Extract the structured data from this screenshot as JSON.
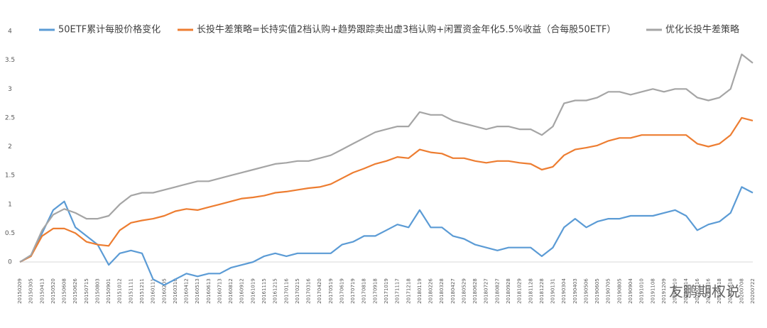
{
  "chart_data": {
    "type": "line",
    "categories": [
      "20150209",
      "20150305",
      "20150413",
      "20150520",
      "20150608",
      "20150626",
      "20150715",
      "20150803",
      "20150901",
      "20151012",
      "20151111",
      "20151211",
      "20160111",
      "20160205",
      "20160310",
      "20160412",
      "20160513",
      "20160613",
      "20160713",
      "20160812",
      "20160912",
      "20161019",
      "20161115",
      "20161215",
      "20170116",
      "20170215",
      "20170316",
      "20170420",
      "20170519",
      "20170619",
      "20170719",
      "20170818",
      "20170918",
      "20171019",
      "20171117",
      "20171218",
      "20180119",
      "20180226",
      "20180328",
      "20180427",
      "20180529",
      "20180628",
      "20180727",
      "20180827",
      "20180928",
      "20181029",
      "20181128",
      "20181228",
      "20190131",
      "20190304",
      "20190403",
      "20190506",
      "20190605",
      "20190705",
      "20190805",
      "20190904",
      "20191010",
      "20191108",
      "20191209",
      "20200110",
      "20200214",
      "20200316",
      "20200416",
      "20200518",
      "20200618",
      "20200708",
      "20200722"
    ],
    "series": [
      {
        "name": "50ETF累计每股价格变化",
        "color": "#5b9bd5",
        "values": [
          0,
          0.1,
          0.5,
          0.9,
          1.05,
          0.6,
          0.45,
          0.3,
          -0.05,
          0.15,
          0.2,
          0.15,
          -0.3,
          -0.4,
          -0.3,
          -0.2,
          -0.25,
          -0.2,
          -0.2,
          -0.1,
          -0.05,
          0.0,
          0.1,
          0.15,
          0.1,
          0.15,
          0.15,
          0.15,
          0.15,
          0.3,
          0.35,
          0.45,
          0.45,
          0.55,
          0.65,
          0.6,
          0.9,
          0.6,
          0.6,
          0.45,
          0.4,
          0.3,
          0.25,
          0.2,
          0.25,
          0.25,
          0.25,
          0.1,
          0.25,
          0.6,
          0.75,
          0.6,
          0.7,
          0.75,
          0.75,
          0.8,
          0.8,
          0.8,
          0.85,
          0.9,
          0.8,
          0.55,
          0.65,
          0.7,
          0.85,
          1.3,
          1.2
        ]
      },
      {
        "name": "长投牛差策略=长持实值2档认购+趋势跟踪卖出虚3档认购+闲置资金年化5.5%收益（合每股50ETF）",
        "color": "#ed7d31",
        "values": [
          0,
          0.1,
          0.45,
          0.58,
          0.58,
          0.5,
          0.35,
          0.3,
          0.28,
          0.55,
          0.68,
          0.72,
          0.75,
          0.8,
          0.88,
          0.92,
          0.9,
          0.95,
          1.0,
          1.05,
          1.1,
          1.12,
          1.15,
          1.2,
          1.22,
          1.25,
          1.28,
          1.3,
          1.35,
          1.45,
          1.55,
          1.62,
          1.7,
          1.75,
          1.82,
          1.8,
          1.95,
          1.9,
          1.88,
          1.8,
          1.8,
          1.75,
          1.72,
          1.75,
          1.75,
          1.72,
          1.7,
          1.6,
          1.65,
          1.85,
          1.95,
          1.98,
          2.02,
          2.1,
          2.15,
          2.15,
          2.2,
          2.2,
          2.2,
          2.2,
          2.2,
          2.05,
          2.0,
          2.05,
          2.2,
          2.5,
          2.45
        ]
      },
      {
        "name": "优化长投牛差策略",
        "color": "#a5a5a5",
        "values": [
          0,
          0.12,
          0.55,
          0.82,
          0.92,
          0.85,
          0.75,
          0.75,
          0.8,
          1.0,
          1.15,
          1.2,
          1.2,
          1.25,
          1.3,
          1.35,
          1.4,
          1.4,
          1.45,
          1.5,
          1.55,
          1.6,
          1.65,
          1.7,
          1.72,
          1.75,
          1.75,
          1.8,
          1.85,
          1.95,
          2.05,
          2.15,
          2.25,
          2.3,
          2.35,
          2.35,
          2.6,
          2.55,
          2.55,
          2.45,
          2.4,
          2.35,
          2.3,
          2.35,
          2.35,
          2.3,
          2.3,
          2.2,
          2.35,
          2.75,
          2.8,
          2.8,
          2.85,
          2.95,
          2.95,
          2.9,
          2.95,
          3.0,
          2.95,
          3.0,
          3.0,
          2.85,
          2.8,
          2.85,
          3.0,
          3.6,
          3.45
        ]
      }
    ],
    "ylim": [
      -0.5,
      4
    ],
    "yticks": [
      0,
      0.5,
      1,
      1.5,
      2,
      2.5,
      3,
      3.5,
      4
    ],
    "legend": "top"
  },
  "watermark": "友鹏期权说"
}
